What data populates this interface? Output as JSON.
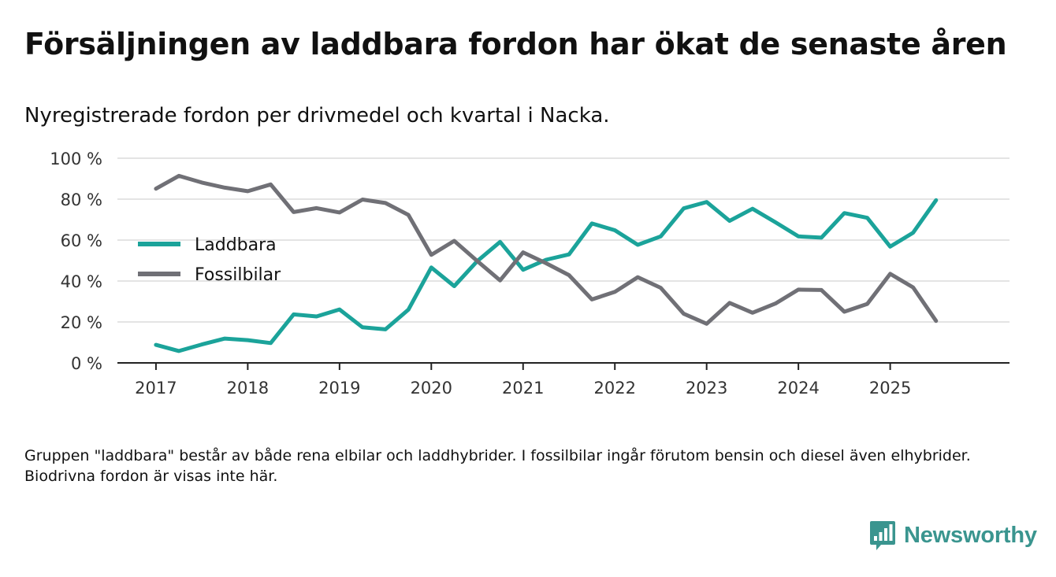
{
  "title": "Försäljningen av laddbara fordon har ökat de senaste åren",
  "subtitle": "Nyregistrerade fordon per drivmedel och kvartal i Nacka.",
  "note": "Gruppen \"laddbara\" består av både rena elbilar och laddhybrider. I fossilbilar ingår förutom bensin och diesel även elhybrider. Biodrivna fordon är visas inte här.",
  "brand": {
    "name": "Newsworthy",
    "color": "#3a958f",
    "icon": "bar-chart-speech-icon"
  },
  "chart_data": {
    "type": "line",
    "title": "Nyregistrerade fordon per drivmedel och kvartal i Nacka.",
    "xlabel": "",
    "ylabel": "",
    "ylim": [
      0,
      100
    ],
    "grid": true,
    "legend_position": "center-left",
    "y_ticks": [
      0,
      20,
      40,
      60,
      80,
      100
    ],
    "y_tick_labels": [
      "0 %",
      "20 %",
      "40 %",
      "60 %",
      "80 %",
      "100 %"
    ],
    "x_tick_labels": [
      "2017",
      "2018",
      "2019",
      "2020",
      "2021",
      "2022",
      "2023",
      "2024",
      "2025"
    ],
    "x_start": 2017,
    "x_step": 0.25,
    "x_range": [
      2016.58,
      2026.3
    ],
    "series": [
      {
        "name": "Laddbara",
        "color": "#1ba39a",
        "values": [
          8.8,
          5.8,
          9.0,
          11.9,
          11.1,
          9.7,
          23.7,
          22.7,
          26.1,
          17.4,
          16.4,
          26.0,
          46.6,
          37.5,
          49.7,
          59.1,
          45.5,
          50.4,
          53.0,
          68.1,
          64.8,
          57.7,
          61.8,
          75.5,
          78.6,
          69.4,
          75.3,
          68.7,
          61.8,
          61.2,
          73.2,
          70.9,
          56.8,
          63.6,
          79.5
        ]
      },
      {
        "name": "Fossilbilar",
        "color": "#707076",
        "values": [
          85.1,
          91.4,
          88.1,
          85.6,
          83.9,
          87.2,
          73.7,
          75.6,
          73.5,
          79.8,
          78.1,
          72.3,
          52.8,
          59.6,
          49.8,
          40.3,
          54.0,
          48.7,
          42.9,
          31.0,
          34.7,
          41.9,
          36.7,
          24.0,
          19.1,
          29.3,
          24.5,
          29.0,
          35.8,
          35.6,
          25.0,
          28.8,
          43.5,
          36.9,
          20.5
        ]
      }
    ]
  }
}
